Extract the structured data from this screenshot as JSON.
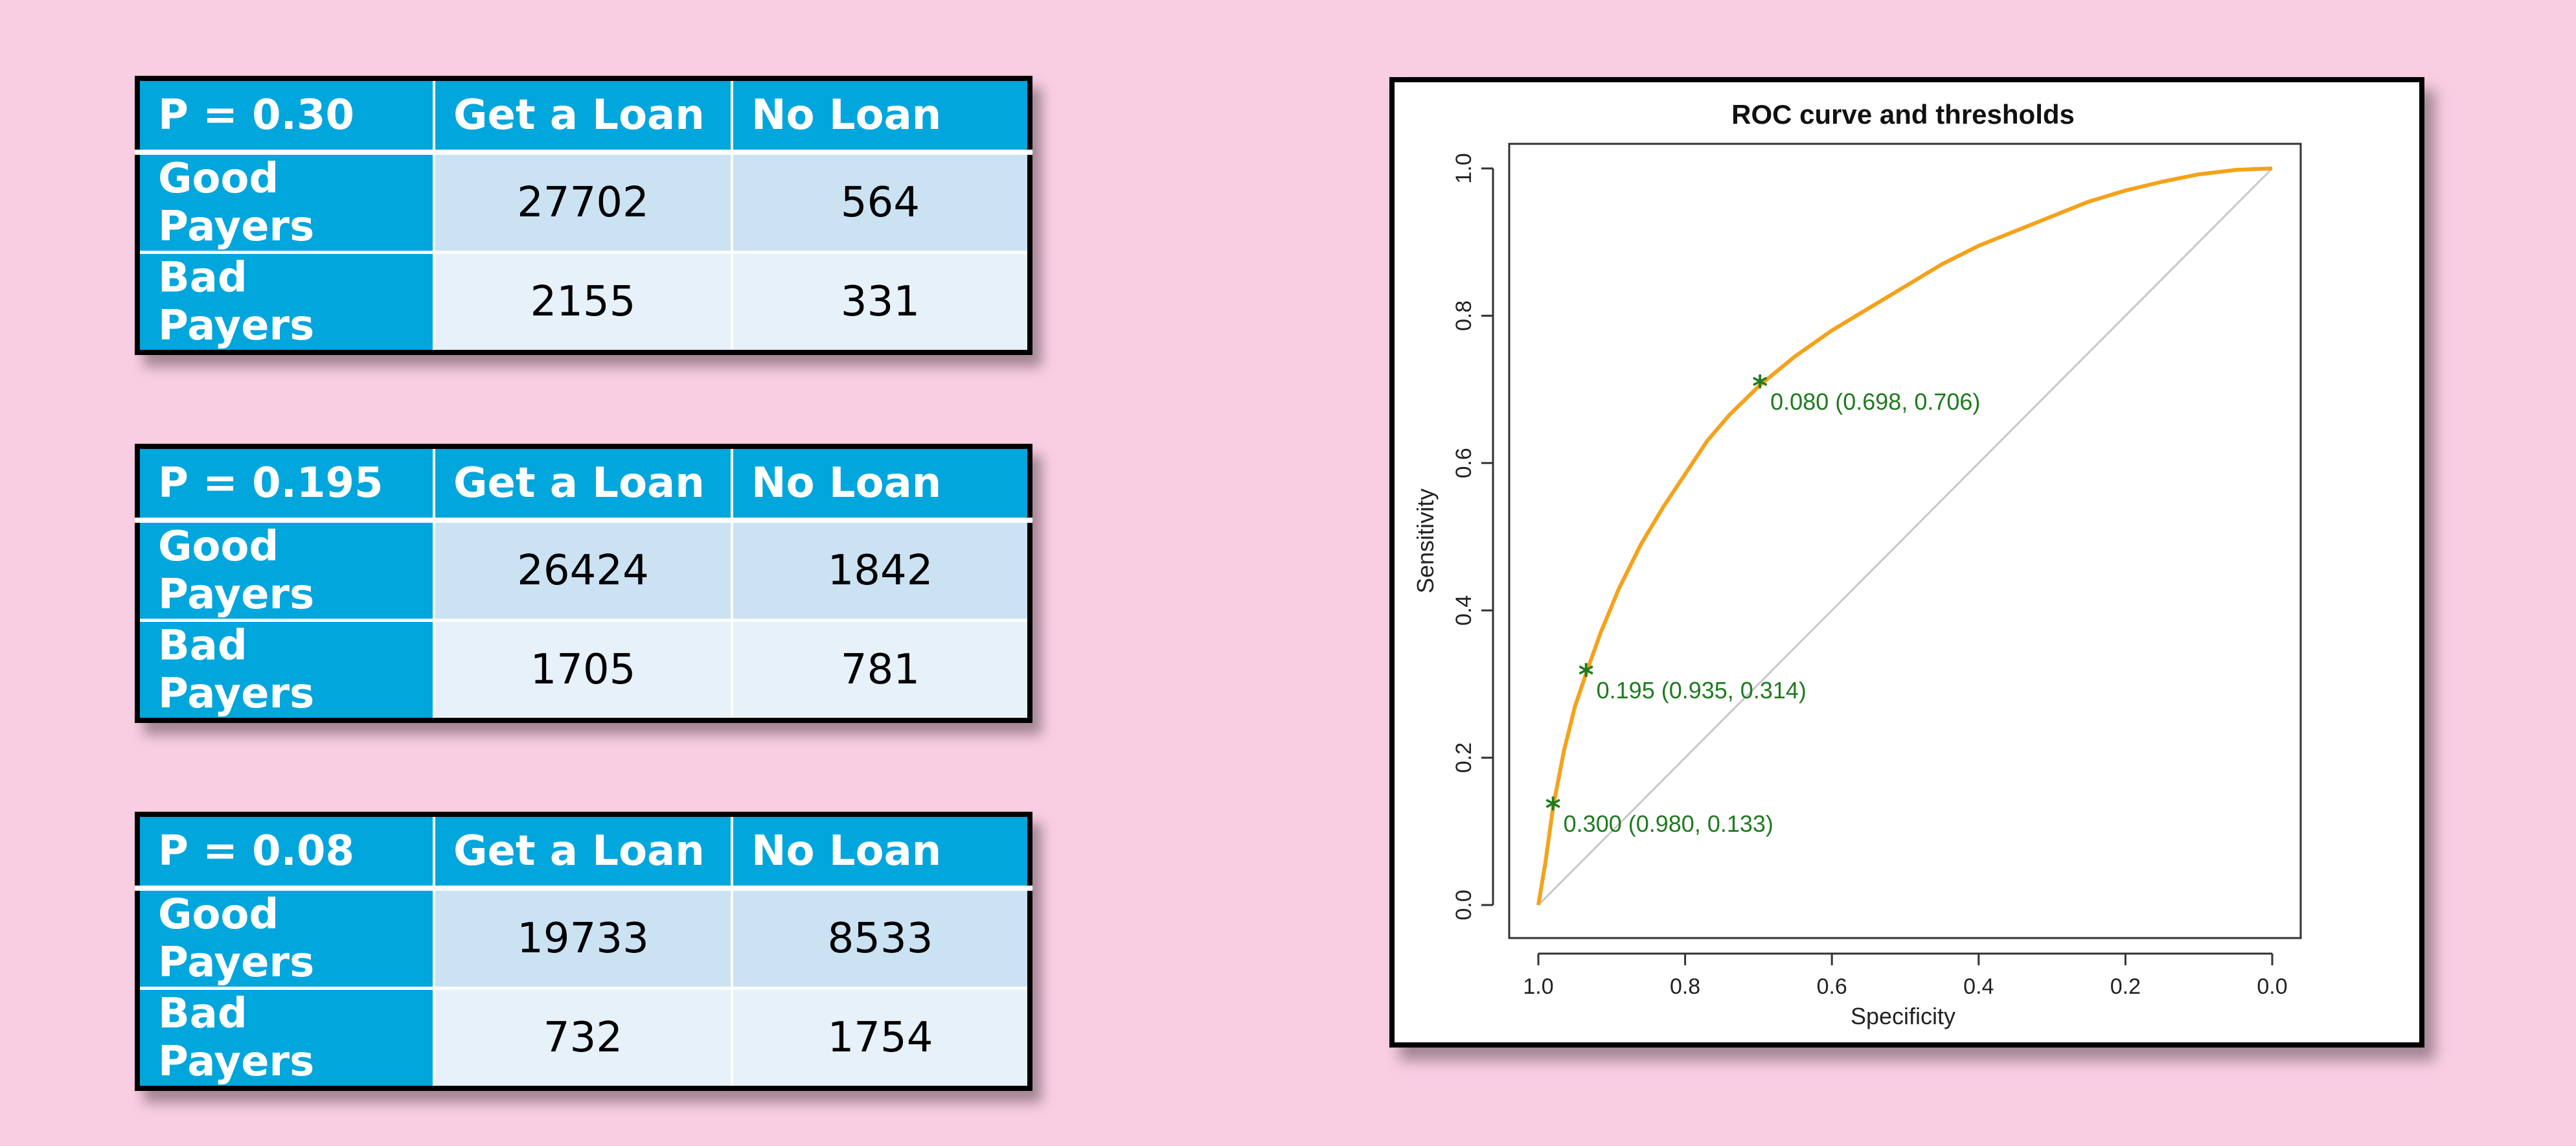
{
  "tables": [
    {
      "header": [
        "P = 0.30",
        "Get a Loan",
        "No Loan"
      ],
      "rows": [
        {
          "label": "Good Payers",
          "get_loan": "27702",
          "no_loan": "564"
        },
        {
          "label": "Bad Payers",
          "get_loan": "2155",
          "no_loan": "331"
        }
      ]
    },
    {
      "header": [
        "P = 0.195",
        "Get a Loan",
        "No Loan"
      ],
      "rows": [
        {
          "label": "Good Payers",
          "get_loan": "26424",
          "no_loan": "1842"
        },
        {
          "label": "Bad Payers",
          "get_loan": "1705",
          "no_loan": "781"
        }
      ]
    },
    {
      "header": [
        "P = 0.08",
        "Get a Loan",
        "No Loan"
      ],
      "rows": [
        {
          "label": "Good Payers",
          "get_loan": "19733",
          "no_loan": "8533"
        },
        {
          "label": "Bad Payers",
          "get_loan": "732",
          "no_loan": "1754"
        }
      ]
    }
  ],
  "chart_data": {
    "type": "line",
    "title": "ROC curve and thresholds",
    "xlabel": "Specificity",
    "ylabel": "Sensitivity",
    "xlim": [
      1.0,
      0.0
    ],
    "ylim": [
      0.0,
      1.0
    ],
    "x_reversed": true,
    "xticks": [
      "1.0",
      "0.8",
      "0.6",
      "0.4",
      "0.2",
      "0.0"
    ],
    "yticks": [
      "0.0",
      "0.2",
      "0.4",
      "0.6",
      "0.8",
      "1.0"
    ],
    "grid": false,
    "series": [
      {
        "color": "#f5a21b",
        "x": [
          1.0,
          0.99,
          0.98,
          0.965,
          0.95,
          0.935,
          0.915,
          0.89,
          0.86,
          0.83,
          0.8,
          0.77,
          0.74,
          0.698,
          0.65,
          0.6,
          0.55,
          0.5,
          0.45,
          0.4,
          0.35,
          0.3,
          0.25,
          0.2,
          0.15,
          0.1,
          0.05,
          0.0
        ],
        "y": [
          0.0,
          0.06,
          0.133,
          0.21,
          0.27,
          0.314,
          0.37,
          0.43,
          0.49,
          0.54,
          0.585,
          0.63,
          0.665,
          0.706,
          0.745,
          0.78,
          0.81,
          0.84,
          0.87,
          0.895,
          0.915,
          0.935,
          0.955,
          0.97,
          0.982,
          0.992,
          0.998,
          1.0
        ]
      },
      {
        "color": "#c8c8c8",
        "x": [
          1.0,
          0.0
        ],
        "y": [
          0.0,
          1.0
        ]
      }
    ],
    "thresholds": [
      {
        "label": "0.300 (0.980, 0.133)",
        "x": 0.98,
        "y": 0.133,
        "color": "#1f7a1f"
      },
      {
        "label": "0.195 (0.935, 0.314)",
        "x": 0.935,
        "y": 0.314,
        "color": "#1f7a1f"
      },
      {
        "label": "0.080 (0.698, 0.706)",
        "x": 0.698,
        "y": 0.706,
        "color": "#1f7a1f"
      }
    ]
  }
}
